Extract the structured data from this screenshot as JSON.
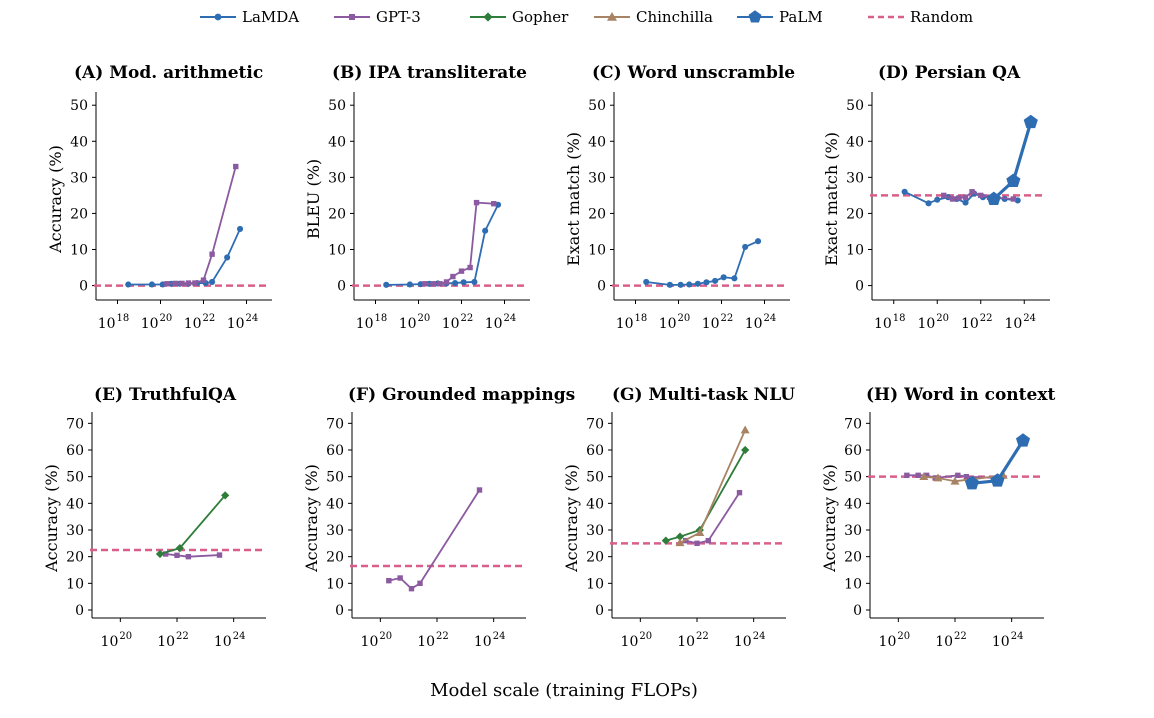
{
  "figure": {
    "xlabel": "Model scale (training FLOPs)"
  },
  "legend": [
    {
      "name": "LaMDA",
      "color": "#2f6db3",
      "marker": "circle",
      "style": "solid"
    },
    {
      "name": "GPT-3",
      "color": "#8b5aa0",
      "marker": "square",
      "style": "solid"
    },
    {
      "name": "Gopher",
      "color": "#2f7d3a",
      "marker": "diamond",
      "style": "solid"
    },
    {
      "name": "Chinchilla",
      "color": "#a88364",
      "marker": "triangle",
      "style": "solid"
    },
    {
      "name": "PaLM",
      "color": "#2f6db3",
      "marker": "pentagon",
      "style": "solid"
    },
    {
      "name": "Random",
      "color": "#d95f8a",
      "marker": "none",
      "style": "dashed"
    }
  ],
  "chart_data": [
    {
      "type": "line",
      "title": "(A) Mod. arithmetic",
      "ylabel": "Accuracy (%)",
      "xscale": "log",
      "xlim": [
        17,
        25
      ],
      "xticks": [
        18,
        20,
        22,
        24
      ],
      "ylim": [
        -4,
        52
      ],
      "yticks": [
        0,
        10,
        20,
        30,
        40,
        50
      ],
      "random": 0,
      "series": [
        {
          "name": "LaMDA",
          "x": [
            18.5,
            19.6,
            20.1,
            20.5,
            20.9,
            21.3,
            21.7,
            22.1,
            22.4,
            23.1,
            23.7
          ],
          "y": [
            0.3,
            0.3,
            0.3,
            0.5,
            0.5,
            0.5,
            0.7,
            0.7,
            1,
            7.8,
            15.7
          ]
        },
        {
          "name": "GPT-3",
          "x": [
            20.3,
            20.7,
            21.0,
            21.3,
            21.6,
            22.0,
            22.4,
            23.5
          ],
          "y": [
            0.5,
            0.6,
            0.6,
            0.7,
            0.7,
            1.5,
            8.7,
            33
          ]
        }
      ]
    },
    {
      "type": "line",
      "title": "(B) IPA transliterate",
      "ylabel": "BLEU (%)",
      "xscale": "log",
      "xlim": [
        17,
        25
      ],
      "xticks": [
        18,
        20,
        22,
        24
      ],
      "ylim": [
        -4,
        52
      ],
      "yticks": [
        0,
        10,
        20,
        30,
        40,
        50
      ],
      "random": 0,
      "series": [
        {
          "name": "LaMDA",
          "x": [
            18.5,
            19.6,
            20.1,
            20.5,
            20.9,
            21.3,
            21.7,
            22.1,
            22.6,
            23.1,
            23.7
          ],
          "y": [
            0.2,
            0.3,
            0.4,
            0.5,
            0.6,
            0.6,
            0.7,
            0.9,
            1,
            15.2,
            22.4
          ]
        },
        {
          "name": "GPT-3",
          "x": [
            20.3,
            20.7,
            21.0,
            21.3,
            21.6,
            22.0,
            22.4,
            22.7,
            23.5
          ],
          "y": [
            0.5,
            0.5,
            0.5,
            1,
            2.5,
            4,
            5,
            23,
            22.7
          ]
        }
      ]
    },
    {
      "type": "line",
      "title": "(C) Word unscramble",
      "ylabel": "Exact match (%)",
      "xscale": "log",
      "xlim": [
        17,
        25
      ],
      "xticks": [
        18,
        20,
        22,
        24
      ],
      "ylim": [
        -4,
        52
      ],
      "yticks": [
        0,
        10,
        20,
        30,
        40,
        50
      ],
      "random": 0,
      "series": [
        {
          "name": "LaMDA",
          "x": [
            18.5,
            19.6,
            20.1,
            20.5,
            20.9,
            21.3,
            21.7,
            22.1,
            22.6,
            23.1,
            23.7
          ],
          "y": [
            1,
            0.2,
            0.2,
            0.3,
            0.5,
            0.9,
            1.3,
            2.3,
            2,
            10.7,
            12.3
          ]
        }
      ]
    },
    {
      "type": "line",
      "title": "(D) Persian QA",
      "ylabel": "Exact match (%)",
      "xscale": "log",
      "xlim": [
        17,
        25
      ],
      "xticks": [
        18,
        20,
        22,
        24
      ],
      "ylim": [
        -4,
        52
      ],
      "yticks": [
        0,
        10,
        20,
        30,
        40,
        50
      ],
      "random": 25,
      "series": [
        {
          "name": "LaMDA",
          "x": [
            18.5,
            19.6,
            20.0,
            20.5,
            20.9,
            21.3,
            21.7,
            22.1,
            22.6,
            23.1,
            23.7
          ],
          "y": [
            26,
            22.8,
            23.8,
            24.5,
            24,
            23,
            25.5,
            24.5,
            24.5,
            24,
            23.6
          ]
        },
        {
          "name": "GPT-3",
          "x": [
            20.3,
            20.7,
            21.0,
            21.3,
            21.6,
            22.0,
            22.4,
            23.5
          ],
          "y": [
            25,
            24,
            24.3,
            24.5,
            26,
            25,
            24.5,
            24
          ]
        },
        {
          "name": "PaLM",
          "x": [
            22.6,
            23.5,
            24.3
          ],
          "y": [
            24,
            29,
            45.3
          ]
        }
      ]
    },
    {
      "type": "line",
      "title": "(E) TruthfulQA",
      "ylabel": "Accuracy (%)",
      "xscale": "log",
      "xlim": [
        19,
        25
      ],
      "xticks": [
        20,
        22,
        24
      ],
      "ylim": [
        -3,
        72
      ],
      "yticks": [
        0,
        10,
        20,
        30,
        40,
        50,
        60,
        70
      ],
      "random": 22.5,
      "series": [
        {
          "name": "GPT-3",
          "x": [
            21.6,
            22.0,
            22.4,
            23.5
          ],
          "y": [
            21,
            20.5,
            20,
            20.6
          ]
        },
        {
          "name": "Gopher",
          "x": [
            21.4,
            22.1,
            23.7
          ],
          "y": [
            21,
            23.2,
            43
          ]
        }
      ]
    },
    {
      "type": "line",
      "title": "(F) Grounded mappings",
      "ylabel": "Accuracy (%)",
      "xscale": "log",
      "xlim": [
        19,
        25
      ],
      "xticks": [
        20,
        22,
        24
      ],
      "ylim": [
        -3,
        72
      ],
      "yticks": [
        0,
        10,
        20,
        30,
        40,
        50,
        60,
        70
      ],
      "random": 16.5,
      "series": [
        {
          "name": "GPT-3",
          "x": [
            20.3,
            20.7,
            21.1,
            21.4,
            23.5
          ],
          "y": [
            11,
            12,
            8,
            10,
            45
          ]
        }
      ]
    },
    {
      "type": "line",
      "title": "(G) Multi-task NLU",
      "ylabel": "Accuracy (%)",
      "xscale": "log",
      "xlim": [
        19,
        25
      ],
      "xticks": [
        20,
        22,
        24
      ],
      "ylim": [
        -3,
        72
      ],
      "yticks": [
        0,
        10,
        20,
        30,
        40,
        50,
        60,
        70
      ],
      "random": 25,
      "series": [
        {
          "name": "GPT-3",
          "x": [
            21.6,
            22.0,
            22.4,
            23.5
          ],
          "y": [
            26,
            25,
            26,
            44
          ]
        },
        {
          "name": "Gopher",
          "x": [
            20.9,
            21.4,
            22.1,
            23.7
          ],
          "y": [
            26,
            27.5,
            30,
            60
          ]
        },
        {
          "name": "Chinchilla",
          "x": [
            21.4,
            22.1,
            23.7
          ],
          "y": [
            25.2,
            29,
            67.5
          ]
        }
      ]
    },
    {
      "type": "line",
      "title": "(H) Word in context",
      "ylabel": "Accuracy (%)",
      "xscale": "log",
      "xlim": [
        19,
        25
      ],
      "xticks": [
        20,
        22,
        24
      ],
      "ylim": [
        -3,
        72
      ],
      "yticks": [
        0,
        10,
        20,
        30,
        40,
        50,
        60,
        70
      ],
      "random": 50,
      "series": [
        {
          "name": "GPT-3",
          "x": [
            20.3,
            20.7,
            21.0,
            21.3,
            22.1,
            22.4,
            23.5
          ],
          "y": [
            50.5,
            50.5,
            50.5,
            49.5,
            50.5,
            50,
            49.5
          ]
        },
        {
          "name": "Chinchilla",
          "x": [
            20.9,
            21.4,
            22.0,
            22.6,
            23.7
          ],
          "y": [
            50,
            49.5,
            48.3,
            49,
            50.5
          ]
        },
        {
          "name": "PaLM",
          "x": [
            22.6,
            23.5,
            24.4
          ],
          "y": [
            47.5,
            48.5,
            63.5
          ]
        }
      ]
    }
  ]
}
